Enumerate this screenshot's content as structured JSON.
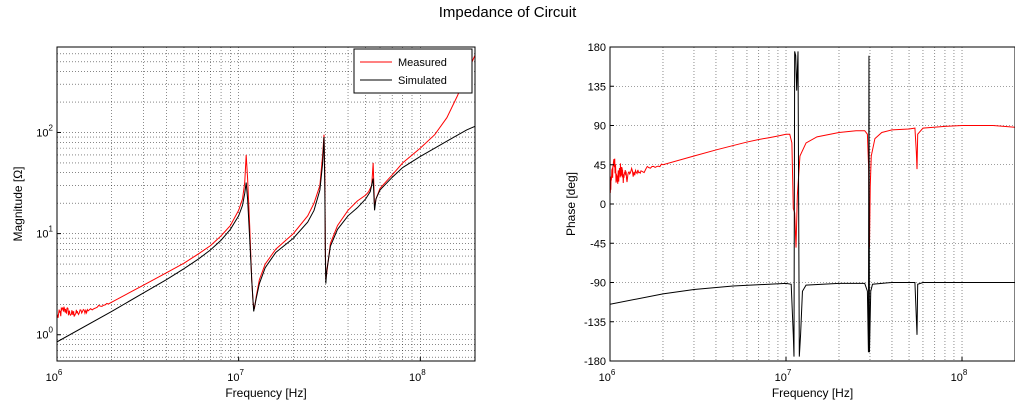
{
  "figure_title": "Impedance of Circuit",
  "colors": {
    "measured": "#ff0000",
    "simulated": "#000000"
  },
  "chart_data": [
    {
      "type": "line",
      "title": "",
      "xlabel": "Frequency [Hz]",
      "ylabel": "Magnitude [Ω]",
      "xscale": "log",
      "yscale": "log",
      "xlim": [
        1000000,
        200000000
      ],
      "ylim": [
        0.55,
        700
      ],
      "xticks": [
        {
          "value": 1000000,
          "base": "10",
          "exp": "6"
        },
        {
          "value": 10000000,
          "base": "10",
          "exp": "7"
        },
        {
          "value": 100000000,
          "base": "10",
          "exp": "8"
        }
      ],
      "yticks": [
        {
          "value": 1,
          "base": "10",
          "exp": "0"
        },
        {
          "value": 10,
          "base": "10",
          "exp": "1"
        },
        {
          "value": 100,
          "base": "10",
          "exp": "2"
        }
      ],
      "grid": true,
      "legend": {
        "placement": "top-right"
      },
      "series": [
        {
          "name": "Measured",
          "color": "#ff0000",
          "noise": "high-at-low-frequency",
          "points": [
            [
              1000000,
              1.5
            ],
            [
              1100000,
              1.8
            ],
            [
              1200000,
              1.6
            ],
            [
              1300000,
              1.65
            ],
            [
              1500000,
              1.75
            ],
            [
              2000000,
              2.1
            ],
            [
              3000000,
              3.1
            ],
            [
              4000000,
              4.1
            ],
            [
              5000000,
              5.1
            ],
            [
              6000000,
              6.3
            ],
            [
              7000000,
              7.6
            ],
            [
              8000000,
              9.5
            ],
            [
              9000000,
              12
            ],
            [
              10000000,
              17
            ],
            [
              10500000,
              22
            ],
            [
              10800000,
              32
            ],
            [
              11000000,
              60
            ],
            [
              11200000,
              35
            ],
            [
              11500000,
              12
            ],
            [
              11800000,
              3.5
            ],
            [
              12000000,
              2.1
            ],
            [
              12200000,
              1.8
            ],
            [
              12500000,
              2.4
            ],
            [
              13000000,
              3.5
            ],
            [
              14000000,
              5
            ],
            [
              16000000,
              7
            ],
            [
              20000000,
              10
            ],
            [
              24000000,
              15
            ],
            [
              26000000,
              20
            ],
            [
              28000000,
              30
            ],
            [
              29000000,
              60
            ],
            [
              29500000,
              95
            ],
            [
              29800000,
              40
            ],
            [
              30000000,
              8
            ],
            [
              30200000,
              3.5
            ],
            [
              30500000,
              4
            ],
            [
              32000000,
              8
            ],
            [
              35000000,
              12
            ],
            [
              40000000,
              17
            ],
            [
              45000000,
              21
            ],
            [
              50000000,
              24
            ],
            [
              52000000,
              26
            ],
            [
              54000000,
              30
            ],
            [
              55000000,
              50
            ],
            [
              56000000,
              18
            ],
            [
              57000000,
              22
            ],
            [
              60000000,
              28
            ],
            [
              70000000,
              38
            ],
            [
              80000000,
              50
            ],
            [
              100000000,
              70
            ],
            [
              120000000,
              95
            ],
            [
              140000000,
              140
            ],
            [
              160000000,
              230
            ],
            [
              180000000,
              380
            ],
            [
              200000000,
              580
            ]
          ]
        },
        {
          "name": "Simulated",
          "color": "#000000",
          "points": [
            [
              1000000,
              0.85
            ],
            [
              2000000,
              1.7
            ],
            [
              3000000,
              2.6
            ],
            [
              4000000,
              3.5
            ],
            [
              5000000,
              4.5
            ],
            [
              6000000,
              5.6
            ],
            [
              7000000,
              6.9
            ],
            [
              8000000,
              8.6
            ],
            [
              9000000,
              11
            ],
            [
              10000000,
              15
            ],
            [
              10500000,
              19
            ],
            [
              10800000,
              25
            ],
            [
              11000000,
              32
            ],
            [
              11200000,
              22
            ],
            [
              11500000,
              9
            ],
            [
              11800000,
              3.5
            ],
            [
              12100000,
              1.7
            ],
            [
              12500000,
              2.3
            ],
            [
              13000000,
              3.2
            ],
            [
              14000000,
              4.6
            ],
            [
              16000000,
              6.5
            ],
            [
              20000000,
              9
            ],
            [
              24000000,
              13
            ],
            [
              26000000,
              17
            ],
            [
              28000000,
              27
            ],
            [
              29000000,
              50
            ],
            [
              29500000,
              90
            ],
            [
              29800000,
              30
            ],
            [
              30000000,
              6
            ],
            [
              30200000,
              3.2
            ],
            [
              30500000,
              4.2
            ],
            [
              32000000,
              7.5
            ],
            [
              35000000,
              11
            ],
            [
              40000000,
              15
            ],
            [
              45000000,
              18
            ],
            [
              50000000,
              22
            ],
            [
              53000000,
              26
            ],
            [
              55000000,
              35
            ],
            [
              56000000,
              17
            ],
            [
              57000000,
              22
            ],
            [
              60000000,
              27
            ],
            [
              70000000,
              36
            ],
            [
              80000000,
              45
            ],
            [
              100000000,
              58
            ],
            [
              120000000,
              70
            ],
            [
              140000000,
              82
            ],
            [
              160000000,
              94
            ],
            [
              180000000,
              106
            ],
            [
              200000000,
              115
            ]
          ]
        }
      ]
    },
    {
      "type": "line",
      "title": "",
      "xlabel": "Frequency [Hz]",
      "ylabel": "Phase [deg]",
      "xscale": "log",
      "yscale": "linear",
      "xlim": [
        1000000,
        200000000
      ],
      "ylim": [
        -180,
        180
      ],
      "xticks": [
        {
          "value": 1000000,
          "base": "10",
          "exp": "6"
        },
        {
          "value": 10000000,
          "base": "10",
          "exp": "7"
        },
        {
          "value": 100000000,
          "base": "10",
          "exp": "8"
        }
      ],
      "yticks": [
        {
          "value": 180,
          "label": "180"
        },
        {
          "value": 135,
          "label": "135"
        },
        {
          "value": 90,
          "label": "90"
        },
        {
          "value": 45,
          "label": "45"
        },
        {
          "value": 0,
          "label": "0"
        },
        {
          "value": -45,
          "label": "-45"
        },
        {
          "value": -90,
          "label": "-90"
        },
        {
          "value": -135,
          "label": "-135"
        },
        {
          "value": -180,
          "label": "-180"
        }
      ],
      "grid": true,
      "series": [
        {
          "name": "Measured",
          "color": "#ff0000",
          "noise": "high-at-low-frequency",
          "points": [
            [
              1000000,
              15
            ],
            [
              1050000,
              50
            ],
            [
              1100000,
              25
            ],
            [
              1150000,
              40
            ],
            [
              1200000,
              30
            ],
            [
              1300000,
              35
            ],
            [
              1500000,
              38
            ],
            [
              2000000,
              45
            ],
            [
              3000000,
              55
            ],
            [
              4000000,
              62
            ],
            [
              5000000,
              67
            ],
            [
              6000000,
              71
            ],
            [
              7000000,
              74
            ],
            [
              8000000,
              76
            ],
            [
              9000000,
              78
            ],
            [
              10000000,
              80
            ],
            [
              10500000,
              80
            ],
            [
              10800000,
              70
            ],
            [
              11000000,
              -5
            ],
            [
              11200000,
              -10
            ],
            [
              11400000,
              -50
            ],
            [
              11600000,
              10
            ],
            [
              12000000,
              55
            ],
            [
              13000000,
              70
            ],
            [
              15000000,
              77
            ],
            [
              20000000,
              82
            ],
            [
              25000000,
              84
            ],
            [
              28000000,
              84
            ],
            [
              29000000,
              80
            ],
            [
              29500000,
              40
            ],
            [
              29800000,
              -50
            ],
            [
              30100000,
              20
            ],
            [
              30500000,
              55
            ],
            [
              32000000,
              75
            ],
            [
              35000000,
              82
            ],
            [
              40000000,
              85
            ],
            [
              50000000,
              86
            ],
            [
              54000000,
              87
            ],
            [
              55000000,
              60
            ],
            [
              55500000,
              40
            ],
            [
              56000000,
              80
            ],
            [
              60000000,
              87
            ],
            [
              80000000,
              89
            ],
            [
              100000000,
              90
            ],
            [
              150000000,
              90
            ],
            [
              200000000,
              88
            ]
          ]
        },
        {
          "name": "Simulated",
          "color": "#000000",
          "points": [
            [
              1000000,
              -115
            ],
            [
              2000000,
              -103
            ],
            [
              3000000,
              -98
            ],
            [
              5000000,
              -94
            ],
            [
              8000000,
              -92
            ],
            [
              10000000,
              -91
            ],
            [
              10700000,
              -92
            ],
            [
              11000000,
              -150
            ],
            [
              11100000,
              -175
            ],
            [
              11200000,
              175
            ],
            [
              11350000,
              170
            ],
            [
              11500000,
              130
            ],
            [
              11700000,
              175
            ],
            [
              11900000,
              -175
            ],
            [
              12100000,
              -150
            ],
            [
              12400000,
              -100
            ],
            [
              13000000,
              -93
            ],
            [
              20000000,
              -91
            ],
            [
              28000000,
              -91
            ],
            [
              29000000,
              -100
            ],
            [
              29400000,
              -170
            ],
            [
              29600000,
              170
            ],
            [
              29800000,
              -170
            ],
            [
              30300000,
              -100
            ],
            [
              31000000,
              -92
            ],
            [
              40000000,
              -90
            ],
            [
              54000000,
              -90
            ],
            [
              55000000,
              -130
            ],
            [
              55500000,
              -150
            ],
            [
              56000000,
              -92
            ],
            [
              60000000,
              -90
            ],
            [
              100000000,
              -90
            ],
            [
              200000000,
              -90
            ]
          ]
        }
      ]
    }
  ]
}
